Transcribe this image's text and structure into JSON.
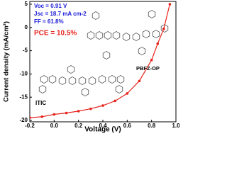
{
  "chart_data": {
    "type": "line",
    "x_label": "Voltage (V)",
    "y_label": "Current density (mA/cm²)",
    "x": [
      -0.2,
      -0.1,
      0.0,
      0.1,
      0.2,
      0.3,
      0.4,
      0.5,
      0.6,
      0.7,
      0.8,
      0.85,
      0.9,
      0.95
    ],
    "series": [
      {
        "name": "PBFZ-OP:ITIC",
        "color": "#e8231c",
        "values": [
          -19.4,
          -19.2,
          -18.7,
          -18.4,
          -18.0,
          -17.5,
          -16.8,
          -15.8,
          -14.2,
          -11.5,
          -7.0,
          -3.5,
          -0.3,
          5.0
        ]
      }
    ],
    "xlim": [
      -0.2,
      1.0
    ],
    "xticks": [
      -0.2,
      {
        "value": 0,
        "label": "0.0"
      },
      0.2,
      0.4,
      0.6,
      0.8,
      {
        "value": 1,
        "label": "1.0"
      }
    ],
    "ylim": [
      -20.3,
      5.6
    ],
    "yticks": [
      -20,
      -15,
      -10,
      -5,
      0,
      5
    ],
    "annotations": [
      {
        "text": "Voc = 0.91 V",
        "color": "#1a1ad6"
      },
      {
        "text": "Jsc = 18.7 mA cm-2",
        "color": "#1a1ad6"
      },
      {
        "text": "FF = 61.8%",
        "color": "#1a1ad6"
      },
      {
        "text": "PCE = 10.5%",
        "color": "#e8231c"
      },
      {
        "text": "PBFZ-OP",
        "color": "#000000"
      },
      {
        "text": "ITIC",
        "color": "#000000"
      }
    ]
  }
}
